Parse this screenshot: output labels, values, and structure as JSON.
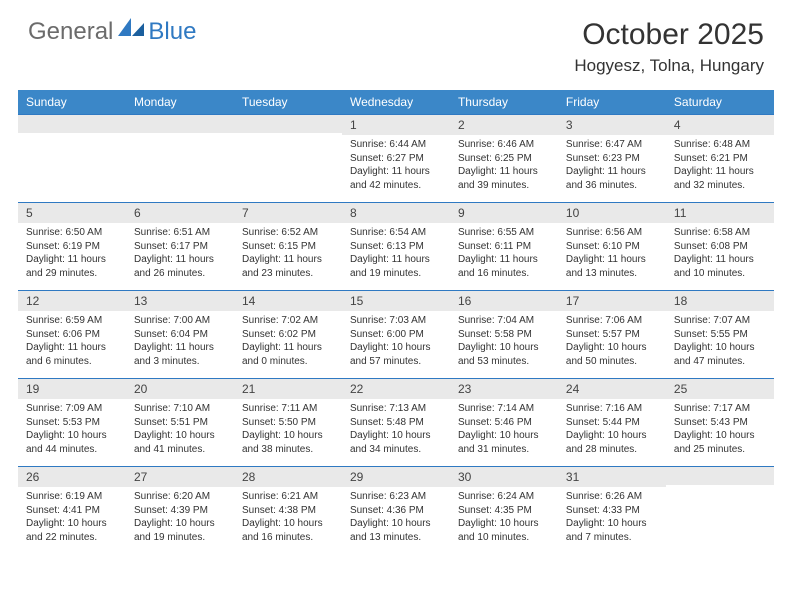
{
  "brand": {
    "part1": "General",
    "part2": "Blue"
  },
  "title": "October 2025",
  "location": "Hogyesz, Tolna, Hungary",
  "colors": {
    "header_bg": "#3b87c8",
    "header_text": "#ffffff",
    "row_border": "#2f79c2",
    "daynum_bg": "#e9e9e9",
    "body_text": "#333333",
    "logo_gray": "#6b6b6b",
    "logo_blue": "#2f79c2",
    "page_bg": "#ffffff"
  },
  "typography": {
    "title_fontsize": 30,
    "location_fontsize": 17,
    "dayhead_fontsize": 12,
    "daynum_fontsize": 12,
    "details_fontsize": 10
  },
  "day_headers": [
    "Sunday",
    "Monday",
    "Tuesday",
    "Wednesday",
    "Thursday",
    "Friday",
    "Saturday"
  ],
  "weeks": [
    [
      {
        "num": "",
        "lines": []
      },
      {
        "num": "",
        "lines": []
      },
      {
        "num": "",
        "lines": []
      },
      {
        "num": "1",
        "lines": [
          "Sunrise: 6:44 AM",
          "Sunset: 6:27 PM",
          "Daylight: 11 hours and 42 minutes."
        ]
      },
      {
        "num": "2",
        "lines": [
          "Sunrise: 6:46 AM",
          "Sunset: 6:25 PM",
          "Daylight: 11 hours and 39 minutes."
        ]
      },
      {
        "num": "3",
        "lines": [
          "Sunrise: 6:47 AM",
          "Sunset: 6:23 PM",
          "Daylight: 11 hours and 36 minutes."
        ]
      },
      {
        "num": "4",
        "lines": [
          "Sunrise: 6:48 AM",
          "Sunset: 6:21 PM",
          "Daylight: 11 hours and 32 minutes."
        ]
      }
    ],
    [
      {
        "num": "5",
        "lines": [
          "Sunrise: 6:50 AM",
          "Sunset: 6:19 PM",
          "Daylight: 11 hours and 29 minutes."
        ]
      },
      {
        "num": "6",
        "lines": [
          "Sunrise: 6:51 AM",
          "Sunset: 6:17 PM",
          "Daylight: 11 hours and 26 minutes."
        ]
      },
      {
        "num": "7",
        "lines": [
          "Sunrise: 6:52 AM",
          "Sunset: 6:15 PM",
          "Daylight: 11 hours and 23 minutes."
        ]
      },
      {
        "num": "8",
        "lines": [
          "Sunrise: 6:54 AM",
          "Sunset: 6:13 PM",
          "Daylight: 11 hours and 19 minutes."
        ]
      },
      {
        "num": "9",
        "lines": [
          "Sunrise: 6:55 AM",
          "Sunset: 6:11 PM",
          "Daylight: 11 hours and 16 minutes."
        ]
      },
      {
        "num": "10",
        "lines": [
          "Sunrise: 6:56 AM",
          "Sunset: 6:10 PM",
          "Daylight: 11 hours and 13 minutes."
        ]
      },
      {
        "num": "11",
        "lines": [
          "Sunrise: 6:58 AM",
          "Sunset: 6:08 PM",
          "Daylight: 11 hours and 10 minutes."
        ]
      }
    ],
    [
      {
        "num": "12",
        "lines": [
          "Sunrise: 6:59 AM",
          "Sunset: 6:06 PM",
          "Daylight: 11 hours and 6 minutes."
        ]
      },
      {
        "num": "13",
        "lines": [
          "Sunrise: 7:00 AM",
          "Sunset: 6:04 PM",
          "Daylight: 11 hours and 3 minutes."
        ]
      },
      {
        "num": "14",
        "lines": [
          "Sunrise: 7:02 AM",
          "Sunset: 6:02 PM",
          "Daylight: 11 hours and 0 minutes."
        ]
      },
      {
        "num": "15",
        "lines": [
          "Sunrise: 7:03 AM",
          "Sunset: 6:00 PM",
          "Daylight: 10 hours and 57 minutes."
        ]
      },
      {
        "num": "16",
        "lines": [
          "Sunrise: 7:04 AM",
          "Sunset: 5:58 PM",
          "Daylight: 10 hours and 53 minutes."
        ]
      },
      {
        "num": "17",
        "lines": [
          "Sunrise: 7:06 AM",
          "Sunset: 5:57 PM",
          "Daylight: 10 hours and 50 minutes."
        ]
      },
      {
        "num": "18",
        "lines": [
          "Sunrise: 7:07 AM",
          "Sunset: 5:55 PM",
          "Daylight: 10 hours and 47 minutes."
        ]
      }
    ],
    [
      {
        "num": "19",
        "lines": [
          "Sunrise: 7:09 AM",
          "Sunset: 5:53 PM",
          "Daylight: 10 hours and 44 minutes."
        ]
      },
      {
        "num": "20",
        "lines": [
          "Sunrise: 7:10 AM",
          "Sunset: 5:51 PM",
          "Daylight: 10 hours and 41 minutes."
        ]
      },
      {
        "num": "21",
        "lines": [
          "Sunrise: 7:11 AM",
          "Sunset: 5:50 PM",
          "Daylight: 10 hours and 38 minutes."
        ]
      },
      {
        "num": "22",
        "lines": [
          "Sunrise: 7:13 AM",
          "Sunset: 5:48 PM",
          "Daylight: 10 hours and 34 minutes."
        ]
      },
      {
        "num": "23",
        "lines": [
          "Sunrise: 7:14 AM",
          "Sunset: 5:46 PM",
          "Daylight: 10 hours and 31 minutes."
        ]
      },
      {
        "num": "24",
        "lines": [
          "Sunrise: 7:16 AM",
          "Sunset: 5:44 PM",
          "Daylight: 10 hours and 28 minutes."
        ]
      },
      {
        "num": "25",
        "lines": [
          "Sunrise: 7:17 AM",
          "Sunset: 5:43 PM",
          "Daylight: 10 hours and 25 minutes."
        ]
      }
    ],
    [
      {
        "num": "26",
        "lines": [
          "Sunrise: 6:19 AM",
          "Sunset: 4:41 PM",
          "Daylight: 10 hours and 22 minutes."
        ]
      },
      {
        "num": "27",
        "lines": [
          "Sunrise: 6:20 AM",
          "Sunset: 4:39 PM",
          "Daylight: 10 hours and 19 minutes."
        ]
      },
      {
        "num": "28",
        "lines": [
          "Sunrise: 6:21 AM",
          "Sunset: 4:38 PM",
          "Daylight: 10 hours and 16 minutes."
        ]
      },
      {
        "num": "29",
        "lines": [
          "Sunrise: 6:23 AM",
          "Sunset: 4:36 PM",
          "Daylight: 10 hours and 13 minutes."
        ]
      },
      {
        "num": "30",
        "lines": [
          "Sunrise: 6:24 AM",
          "Sunset: 4:35 PM",
          "Daylight: 10 hours and 10 minutes."
        ]
      },
      {
        "num": "31",
        "lines": [
          "Sunrise: 6:26 AM",
          "Sunset: 4:33 PM",
          "Daylight: 10 hours and 7 minutes."
        ]
      },
      {
        "num": "",
        "lines": []
      }
    ]
  ]
}
